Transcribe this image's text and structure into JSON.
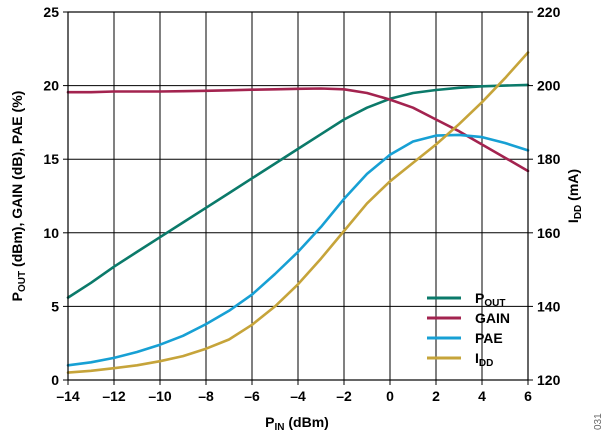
{
  "chart_data": {
    "type": "line",
    "xlabel": {
      "main": "P",
      "sub": "IN",
      "rest": " (dBm)"
    },
    "ylabel_left": {
      "p1": "P",
      "p1_sub": "OUT",
      "rest": " (dBm), GAIN (dB), PAE (%)"
    },
    "ylabel_right": {
      "p1": "I",
      "p1_sub": "DD",
      "rest": " (mA)"
    },
    "x_ticks": [
      "–14",
      "–12",
      "–10",
      "–8",
      "–6",
      "–4",
      "–2",
      "0",
      "2",
      "4",
      "6"
    ],
    "y_left_ticks": [
      "0",
      "5",
      "10",
      "15",
      "20",
      "25"
    ],
    "y_right_ticks": [
      "120",
      "140",
      "160",
      "180",
      "200",
      "220"
    ],
    "xlim": [
      -14,
      6
    ],
    "ylim_left": [
      0,
      25
    ],
    "ylim_right": [
      120,
      220
    ],
    "grid": true,
    "legend_position": "bottom-right",
    "figure_id": "031",
    "series": [
      {
        "name": "POUT",
        "label_main": "P",
        "label_sub": "OUT",
        "axis": "left",
        "color": "#0b7a6a",
        "x": [
          -14,
          -13,
          -12,
          -11,
          -10,
          -9,
          -8,
          -7,
          -6,
          -5,
          -4,
          -3,
          -2,
          -1,
          0,
          1,
          2,
          3,
          4,
          5,
          6
        ],
        "y": [
          5.6,
          6.6,
          7.7,
          8.7,
          9.7,
          10.7,
          11.7,
          12.7,
          13.7,
          14.7,
          15.7,
          16.7,
          17.7,
          18.5,
          19.1,
          19.5,
          19.7,
          19.85,
          19.95,
          20.0,
          20.05
        ]
      },
      {
        "name": "GAIN",
        "label_main": "GAIN",
        "label_sub": "",
        "axis": "left",
        "color": "#a3234f",
        "x": [
          -14,
          -13,
          -12,
          -11,
          -10,
          -9,
          -8,
          -7,
          -6,
          -5,
          -4,
          -3,
          -2,
          -1,
          0,
          1,
          2,
          3,
          4,
          5,
          6
        ],
        "y": [
          19.55,
          19.55,
          19.6,
          19.6,
          19.6,
          19.62,
          19.65,
          19.68,
          19.72,
          19.75,
          19.78,
          19.8,
          19.75,
          19.5,
          19.05,
          18.5,
          17.7,
          16.9,
          16.0,
          15.1,
          14.2
        ]
      },
      {
        "name": "PAE",
        "label_main": "PAE",
        "label_sub": "",
        "axis": "left",
        "color": "#17a0d4",
        "x": [
          -14,
          -13,
          -12,
          -11,
          -10,
          -9,
          -8,
          -7,
          -6,
          -5,
          -4,
          -3,
          -2,
          -1,
          0,
          1,
          2,
          3,
          4,
          5,
          6
        ],
        "y": [
          1.0,
          1.2,
          1.5,
          1.9,
          2.4,
          3.0,
          3.8,
          4.7,
          5.8,
          7.2,
          8.7,
          10.4,
          12.3,
          14.0,
          15.3,
          16.2,
          16.6,
          16.65,
          16.5,
          16.1,
          15.6
        ]
      },
      {
        "name": "IDD",
        "label_main": "I",
        "label_sub": "DD",
        "axis": "right",
        "color": "#c6a43a",
        "x": [
          -14,
          -13,
          -12,
          -11,
          -10,
          -9,
          -8,
          -7,
          -6,
          -5,
          -4,
          -3,
          -2,
          -1,
          0,
          1,
          2,
          3,
          4,
          5,
          6
        ],
        "y": [
          122,
          122.5,
          123.2,
          124,
          125.1,
          126.5,
          128.5,
          131,
          135,
          140,
          146,
          153,
          160.5,
          168,
          174,
          179,
          184,
          189.5,
          195.5,
          202,
          209
        ]
      }
    ]
  }
}
